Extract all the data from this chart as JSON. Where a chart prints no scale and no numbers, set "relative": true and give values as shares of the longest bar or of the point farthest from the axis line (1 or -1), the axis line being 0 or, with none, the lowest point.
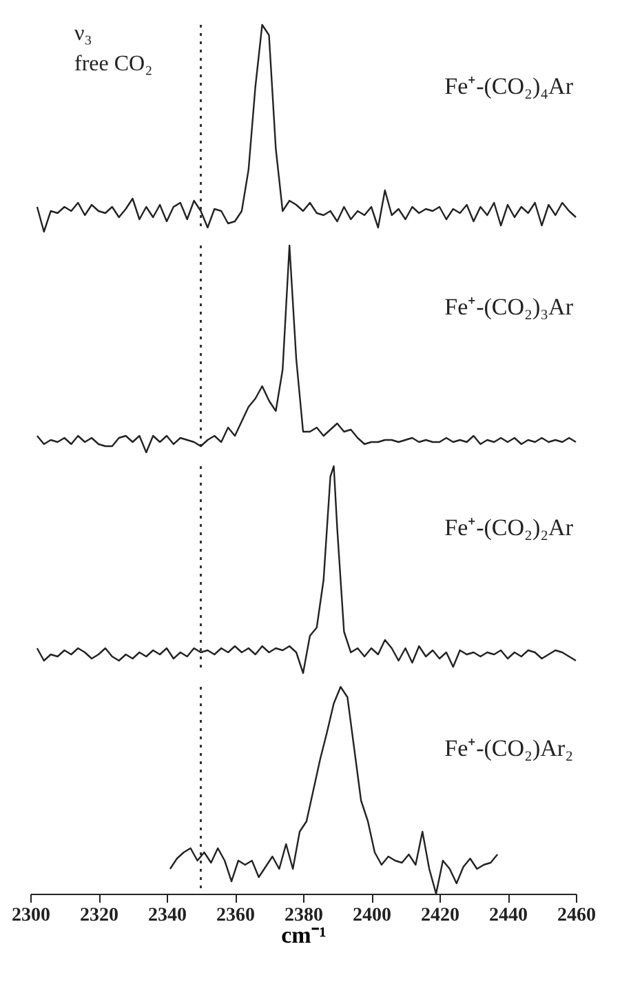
{
  "chart_data": [
    {
      "type": "line",
      "relative": true,
      "xlim": [
        2300,
        2460
      ],
      "tick_labels": false,
      "annotations": [
        "ν₃",
        "free CO₂"
      ],
      "ref_lines": [
        {
          "axis": "x",
          "value": 2350,
          "line_style": "dotted"
        }
      ],
      "series": [
        {
          "name": "Fe⁺-(CO₂)₄Ar",
          "color": "#222222",
          "x": [
            2302,
            2304,
            2306,
            2308,
            2310,
            2312,
            2314,
            2316,
            2318,
            2320,
            2322,
            2324,
            2326,
            2328,
            2330,
            2332,
            2334,
            2336,
            2338,
            2340,
            2342,
            2344,
            2346,
            2348,
            2350,
            2352,
            2354,
            2356,
            2358,
            2360,
            2362,
            2364,
            2366,
            2368,
            2370,
            2372,
            2374,
            2376,
            2378,
            2380,
            2382,
            2384,
            2386,
            2388,
            2390,
            2392,
            2394,
            2396,
            2398,
            2400,
            2402,
            2404,
            2406,
            2408,
            2410,
            2412,
            2414,
            2416,
            2418,
            2420,
            2422,
            2424,
            2426,
            2428,
            2430,
            2432,
            2434,
            2436,
            2438,
            2440,
            2442,
            2444,
            2446,
            2448,
            2450,
            2452,
            2454,
            2456,
            2458,
            2460
          ],
          "values": [
            0.12,
            0.0,
            0.1,
            0.09,
            0.12,
            0.1,
            0.14,
            0.08,
            0.13,
            0.1,
            0.09,
            0.12,
            0.07,
            0.11,
            0.16,
            0.06,
            0.12,
            0.07,
            0.13,
            0.05,
            0.12,
            0.14,
            0.06,
            0.15,
            0.1,
            0.02,
            0.11,
            0.1,
            0.04,
            0.05,
            0.1,
            0.3,
            0.7,
            1.0,
            0.95,
            0.4,
            0.1,
            0.15,
            0.13,
            0.1,
            0.14,
            0.09,
            0.08,
            0.1,
            0.05,
            0.12,
            0.06,
            0.1,
            0.08,
            0.12,
            0.02,
            0.2,
            0.08,
            0.11,
            0.06,
            0.12,
            0.09,
            0.11,
            0.1,
            0.12,
            0.06,
            0.11,
            0.09,
            0.13,
            0.05,
            0.12,
            0.08,
            0.14,
            0.03,
            0.13,
            0.07,
            0.12,
            0.09,
            0.14,
            0.03,
            0.13,
            0.08,
            0.14,
            0.1,
            0.07
          ]
        }
      ]
    },
    {
      "type": "line",
      "relative": true,
      "xlim": [
        2300,
        2460
      ],
      "tick_labels": false,
      "ref_lines": [
        {
          "axis": "x",
          "value": 2350,
          "line_style": "dotted"
        }
      ],
      "series": [
        {
          "name": "Fe⁺-(CO₂)₃Ar",
          "color": "#222222",
          "x": [
            2302,
            2304,
            2306,
            2308,
            2310,
            2312,
            2314,
            2316,
            2318,
            2320,
            2322,
            2324,
            2326,
            2328,
            2330,
            2332,
            2334,
            2336,
            2338,
            2340,
            2342,
            2344,
            2346,
            2348,
            2350,
            2352,
            2354,
            2356,
            2358,
            2360,
            2362,
            2364,
            2366,
            2368,
            2370,
            2372,
            2374,
            2376,
            2378,
            2380,
            2382,
            2384,
            2386,
            2388,
            2390,
            2392,
            2394,
            2396,
            2398,
            2400,
            2402,
            2404,
            2406,
            2408,
            2410,
            2412,
            2414,
            2416,
            2418,
            2420,
            2422,
            2424,
            2426,
            2428,
            2430,
            2432,
            2434,
            2436,
            2438,
            2440,
            2442,
            2444,
            2446,
            2448,
            2450,
            2452,
            2454,
            2456,
            2458,
            2460
          ],
          "values": [
            0.08,
            0.04,
            0.06,
            0.05,
            0.07,
            0.04,
            0.08,
            0.05,
            0.07,
            0.04,
            0.03,
            0.03,
            0.07,
            0.08,
            0.05,
            0.08,
            0.0,
            0.08,
            0.05,
            0.08,
            0.04,
            0.07,
            0.06,
            0.05,
            0.03,
            0.06,
            0.08,
            0.05,
            0.12,
            0.08,
            0.15,
            0.22,
            0.26,
            0.32,
            0.25,
            0.2,
            0.4,
            1.0,
            0.45,
            0.1,
            0.1,
            0.12,
            0.08,
            0.11,
            0.14,
            0.1,
            0.11,
            0.07,
            0.04,
            0.05,
            0.05,
            0.06,
            0.06,
            0.05,
            0.06,
            0.07,
            0.05,
            0.06,
            0.05,
            0.05,
            0.07,
            0.05,
            0.06,
            0.05,
            0.08,
            0.04,
            0.06,
            0.05,
            0.07,
            0.05,
            0.07,
            0.04,
            0.06,
            0.05,
            0.07,
            0.05,
            0.06,
            0.05,
            0.07,
            0.05
          ]
        }
      ]
    },
    {
      "type": "line",
      "relative": true,
      "xlim": [
        2300,
        2460
      ],
      "tick_labels": false,
      "ref_lines": [
        {
          "axis": "x",
          "value": 2350,
          "line_style": "dotted"
        }
      ],
      "series": [
        {
          "name": "Fe⁺-(CO₂)₂Ar",
          "color": "#222222",
          "x": [
            2302,
            2304,
            2306,
            2308,
            2310,
            2312,
            2314,
            2316,
            2318,
            2320,
            2322,
            2324,
            2326,
            2328,
            2330,
            2332,
            2334,
            2336,
            2338,
            2340,
            2342,
            2344,
            2346,
            2348,
            2350,
            2352,
            2354,
            2356,
            2358,
            2360,
            2362,
            2364,
            2366,
            2368,
            2370,
            2372,
            2374,
            2376,
            2378,
            2380,
            2382,
            2384,
            2386,
            2388,
            2389,
            2390,
            2392,
            2394,
            2396,
            2398,
            2400,
            2402,
            2404,
            2406,
            2408,
            2410,
            2412,
            2414,
            2416,
            2418,
            2420,
            2422,
            2424,
            2426,
            2428,
            2430,
            2432,
            2434,
            2436,
            2438,
            2440,
            2442,
            2444,
            2446,
            2448,
            2450,
            2452,
            2454,
            2456,
            2458,
            2460
          ],
          "values": [
            0.12,
            0.06,
            0.09,
            0.08,
            0.11,
            0.09,
            0.12,
            0.1,
            0.07,
            0.09,
            0.12,
            0.08,
            0.06,
            0.09,
            0.07,
            0.1,
            0.08,
            0.11,
            0.09,
            0.12,
            0.07,
            0.1,
            0.08,
            0.12,
            0.1,
            0.11,
            0.09,
            0.12,
            0.1,
            0.13,
            0.1,
            0.12,
            0.09,
            0.13,
            0.1,
            0.12,
            0.11,
            0.13,
            0.1,
            0.0,
            0.18,
            0.22,
            0.45,
            0.95,
            1.0,
            0.7,
            0.2,
            0.1,
            0.12,
            0.08,
            0.12,
            0.09,
            0.16,
            0.12,
            0.06,
            0.12,
            0.05,
            0.13,
            0.08,
            0.11,
            0.07,
            0.1,
            0.03,
            0.11,
            0.09,
            0.1,
            0.08,
            0.1,
            0.09,
            0.11,
            0.07,
            0.1,
            0.08,
            0.11,
            0.1,
            0.07,
            0.09,
            0.11,
            0.1,
            0.08,
            0.06
          ]
        }
      ]
    },
    {
      "type": "line",
      "relative": true,
      "xlim": [
        2300,
        2460
      ],
      "xticks": [
        2300,
        2320,
        2340,
        2360,
        2380,
        2400,
        2420,
        2440,
        2460
      ],
      "tick_labels": "x",
      "xlabel": "cm⁻¹",
      "ref_lines": [
        {
          "axis": "x",
          "value": 2350,
          "line_style": "dotted"
        }
      ],
      "series": [
        {
          "name": "Fe⁺-(CO₂)Ar₂",
          "color": "#222222",
          "x": [
            2341,
            2343,
            2345,
            2347,
            2349,
            2351,
            2353,
            2355,
            2357,
            2359,
            2361,
            2363,
            2365,
            2367,
            2369,
            2371,
            2373,
            2375,
            2377,
            2379,
            2381,
            2383,
            2385,
            2387,
            2389,
            2391,
            2393,
            2395,
            2397,
            2399,
            2401,
            2403,
            2405,
            2407,
            2409,
            2411,
            2413,
            2415,
            2417,
            2419,
            2421,
            2423,
            2425,
            2427,
            2429,
            2431,
            2433,
            2435,
            2437
          ],
          "values": [
            0.12,
            0.17,
            0.2,
            0.22,
            0.16,
            0.2,
            0.15,
            0.22,
            0.16,
            0.06,
            0.16,
            0.14,
            0.16,
            0.08,
            0.13,
            0.18,
            0.12,
            0.24,
            0.12,
            0.3,
            0.35,
            0.5,
            0.65,
            0.78,
            0.92,
            1.0,
            0.95,
            0.7,
            0.45,
            0.35,
            0.2,
            0.14,
            0.18,
            0.16,
            0.15,
            0.19,
            0.14,
            0.3,
            0.12,
            0.0,
            0.16,
            0.12,
            0.05,
            0.13,
            0.17,
            0.12,
            0.14,
            0.15,
            0.19
          ]
        }
      ]
    }
  ]
}
